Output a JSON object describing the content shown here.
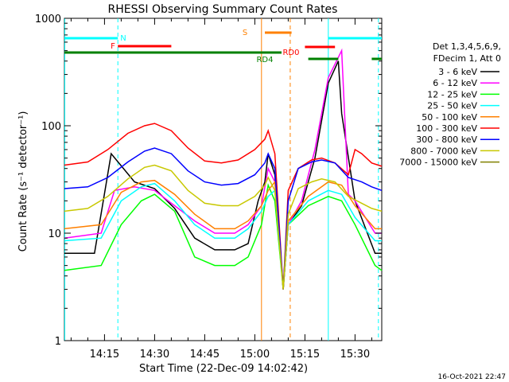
{
  "chart_data": {
    "type": "line",
    "title": "RHESSI Observing Summary Count Rates",
    "xlabel": "Start Time (22-Dec-09 14:02:42)",
    "ylabel": "Count Rate (s⁻¹ detector⁻¹)",
    "yscale": "log",
    "ylim": [
      1,
      1000
    ],
    "xlim_minutes_after_14_00": [
      3,
      98
    ],
    "x_ticks": [
      "14:15",
      "14:30",
      "14:45",
      "15:00",
      "15:15",
      "15:30"
    ],
    "y_ticks": [
      "1",
      "10",
      "100",
      "1000"
    ],
    "timestamp": "16-Oct-2021 22:47",
    "legend_header": [
      "Det 1,3,4,5,6,9,",
      "FDecim 1, Att 0"
    ],
    "series": [
      {
        "name": "3 - 6 keV",
        "color": "#000000",
        "points": [
          [
            3,
            6.5
          ],
          [
            12,
            6.5
          ],
          [
            17,
            55
          ],
          [
            24,
            30
          ],
          [
            30,
            26
          ],
          [
            36,
            17
          ],
          [
            42,
            9
          ],
          [
            48,
            7
          ],
          [
            54,
            7
          ],
          [
            58,
            8
          ],
          [
            61,
            20
          ],
          [
            63,
            30
          ],
          [
            64,
            55
          ],
          [
            66,
            35
          ],
          [
            68.5,
            3
          ],
          [
            70,
            12
          ],
          [
            74,
            18
          ],
          [
            78,
            50
          ],
          [
            82,
            250
          ],
          [
            85,
            400
          ],
          [
            86,
            130
          ],
          [
            90,
            20
          ],
          [
            96,
            6.5
          ],
          [
            98,
            6.5
          ]
        ]
      },
      {
        "name": "6 - 12 keV",
        "color": "#ff00ff",
        "points": [
          [
            3,
            9
          ],
          [
            14,
            10
          ],
          [
            18,
            25
          ],
          [
            24,
            27
          ],
          [
            30,
            25
          ],
          [
            36,
            18
          ],
          [
            42,
            13
          ],
          [
            48,
            10
          ],
          [
            54,
            10
          ],
          [
            58,
            12
          ],
          [
            62,
            18
          ],
          [
            64,
            40
          ],
          [
            66,
            30
          ],
          [
            68.5,
            3
          ],
          [
            70,
            12
          ],
          [
            74,
            20
          ],
          [
            78,
            60
          ],
          [
            82,
            280
          ],
          [
            86,
            500
          ],
          [
            88,
            23
          ],
          [
            90,
            20
          ],
          [
            96,
            10
          ],
          [
            98,
            10
          ]
        ]
      },
      {
        "name": "12 - 25 keV",
        "color": "#00ff00",
        "points": [
          [
            3,
            4.5
          ],
          [
            14,
            5
          ],
          [
            20,
            12
          ],
          [
            26,
            20
          ],
          [
            30,
            23
          ],
          [
            36,
            16
          ],
          [
            42,
            6
          ],
          [
            48,
            5
          ],
          [
            54,
            5
          ],
          [
            58,
            6
          ],
          [
            62,
            12
          ],
          [
            64,
            28
          ],
          [
            66,
            20
          ],
          [
            68.5,
            3
          ],
          [
            70,
            12
          ],
          [
            76,
            18
          ],
          [
            82,
            22
          ],
          [
            86,
            20
          ],
          [
            90,
            12
          ],
          [
            96,
            5
          ],
          [
            98,
            4.5
          ]
        ]
      },
      {
        "name": "25 - 50 keV",
        "color": "#00ffff",
        "points": [
          [
            3,
            8.5
          ],
          [
            14,
            9
          ],
          [
            20,
            20
          ],
          [
            26,
            27
          ],
          [
            30,
            29
          ],
          [
            36,
            20
          ],
          [
            42,
            12
          ],
          [
            48,
            9
          ],
          [
            54,
            9
          ],
          [
            58,
            11
          ],
          [
            62,
            16
          ],
          [
            64,
            22
          ],
          [
            66,
            25
          ],
          [
            68.5,
            3
          ],
          [
            70,
            12
          ],
          [
            76,
            20
          ],
          [
            82,
            25
          ],
          [
            86,
            23
          ],
          [
            90,
            14
          ],
          [
            96,
            8.5
          ],
          [
            98,
            8.5
          ]
        ]
      },
      {
        "name": "50 - 100 keV",
        "color": "#ff8000",
        "points": [
          [
            3,
            11
          ],
          [
            14,
            12
          ],
          [
            20,
            24
          ],
          [
            26,
            30
          ],
          [
            30,
            31
          ],
          [
            36,
            23
          ],
          [
            42,
            15
          ],
          [
            48,
            11
          ],
          [
            54,
            11
          ],
          [
            58,
            13
          ],
          [
            62,
            18
          ],
          [
            64,
            25
          ],
          [
            66,
            30
          ],
          [
            68.5,
            3
          ],
          [
            70,
            13
          ],
          [
            76,
            22
          ],
          [
            82,
            30
          ],
          [
            86,
            28
          ],
          [
            90,
            18
          ],
          [
            96,
            11
          ],
          [
            98,
            11
          ]
        ]
      },
      {
        "name": "100 - 300 keV",
        "color": "#ff0000",
        "points": [
          [
            3,
            43
          ],
          [
            10,
            46
          ],
          [
            16,
            60
          ],
          [
            22,
            85
          ],
          [
            27,
            100
          ],
          [
            30,
            105
          ],
          [
            35,
            90
          ],
          [
            40,
            62
          ],
          [
            45,
            47
          ],
          [
            50,
            45
          ],
          [
            55,
            48
          ],
          [
            60,
            60
          ],
          [
            63,
            75
          ],
          [
            64,
            90
          ],
          [
            66,
            55
          ],
          [
            68.5,
            3
          ],
          [
            70,
            25
          ],
          [
            73,
            40
          ],
          [
            77,
            48
          ],
          [
            80,
            50
          ],
          [
            84,
            45
          ],
          [
            88,
            35
          ],
          [
            90,
            60
          ],
          [
            92,
            55
          ],
          [
            95,
            45
          ],
          [
            98,
            42
          ]
        ]
      },
      {
        "name": "300 - 800 keV",
        "color": "#0000ff",
        "points": [
          [
            3,
            26
          ],
          [
            10,
            27
          ],
          [
            16,
            33
          ],
          [
            22,
            46
          ],
          [
            27,
            58
          ],
          [
            30,
            62
          ],
          [
            35,
            55
          ],
          [
            40,
            38
          ],
          [
            45,
            30
          ],
          [
            50,
            28
          ],
          [
            55,
            29
          ],
          [
            60,
            35
          ],
          [
            63,
            45
          ],
          [
            64,
            55
          ],
          [
            66,
            40
          ],
          [
            68.5,
            3
          ],
          [
            70,
            20
          ],
          [
            73,
            40
          ],
          [
            77,
            46
          ],
          [
            80,
            48
          ],
          [
            84,
            45
          ],
          [
            88,
            33
          ],
          [
            92,
            30
          ],
          [
            95,
            27
          ],
          [
            98,
            25
          ]
        ]
      },
      {
        "name": "800 - 7000 keV",
        "color": "#c8c800",
        "points": [
          [
            3,
            16
          ],
          [
            10,
            17
          ],
          [
            16,
            22
          ],
          [
            22,
            32
          ],
          [
            27,
            41
          ],
          [
            30,
            43
          ],
          [
            35,
            38
          ],
          [
            40,
            25
          ],
          [
            45,
            19
          ],
          [
            50,
            18
          ],
          [
            55,
            18
          ],
          [
            60,
            22
          ],
          [
            63,
            28
          ],
          [
            64,
            33
          ],
          [
            66,
            25
          ],
          [
            68.5,
            3
          ],
          [
            70,
            15
          ],
          [
            73,
            26
          ],
          [
            77,
            30
          ],
          [
            80,
            32
          ],
          [
            84,
            30
          ],
          [
            88,
            22
          ],
          [
            92,
            19
          ],
          [
            95,
            17
          ],
          [
            98,
            16
          ]
        ]
      },
      {
        "name": "7000 - 15000 keV",
        "color": "#808000",
        "points": []
      }
    ],
    "annotations": [
      {
        "label": "N",
        "color": "#00ffff",
        "segments": [
          [
            3,
            19
          ],
          [
            82,
            98
          ]
        ]
      },
      {
        "label": "F",
        "color": "#ff0000",
        "segments": [
          [
            19,
            35
          ]
        ]
      },
      {
        "label": "S",
        "color": "#ff8000",
        "segments": [
          [
            63,
            71
          ]
        ]
      },
      {
        "label": "RD0",
        "color": "#ff0000",
        "segments": [
          [
            75,
            84
          ]
        ]
      },
      {
        "label": "RD4",
        "color": "#008000",
        "segments": [
          [
            3,
            68
          ],
          [
            76,
            85
          ],
          [
            95,
            98
          ]
        ]
      }
    ],
    "vertical_markers": [
      {
        "x": 3.1,
        "color": "#00ffff",
        "style": "solid"
      },
      {
        "x": 19,
        "color": "#00ffff",
        "style": "dashed"
      },
      {
        "x": 62,
        "color": "#ff8000",
        "style": "solid"
      },
      {
        "x": 70.6,
        "color": "#ff8000",
        "style": "dashed"
      },
      {
        "x": 82,
        "color": "#00ffff",
        "style": "solid"
      },
      {
        "x": 97,
        "color": "#00ffff",
        "style": "dashed"
      }
    ]
  }
}
